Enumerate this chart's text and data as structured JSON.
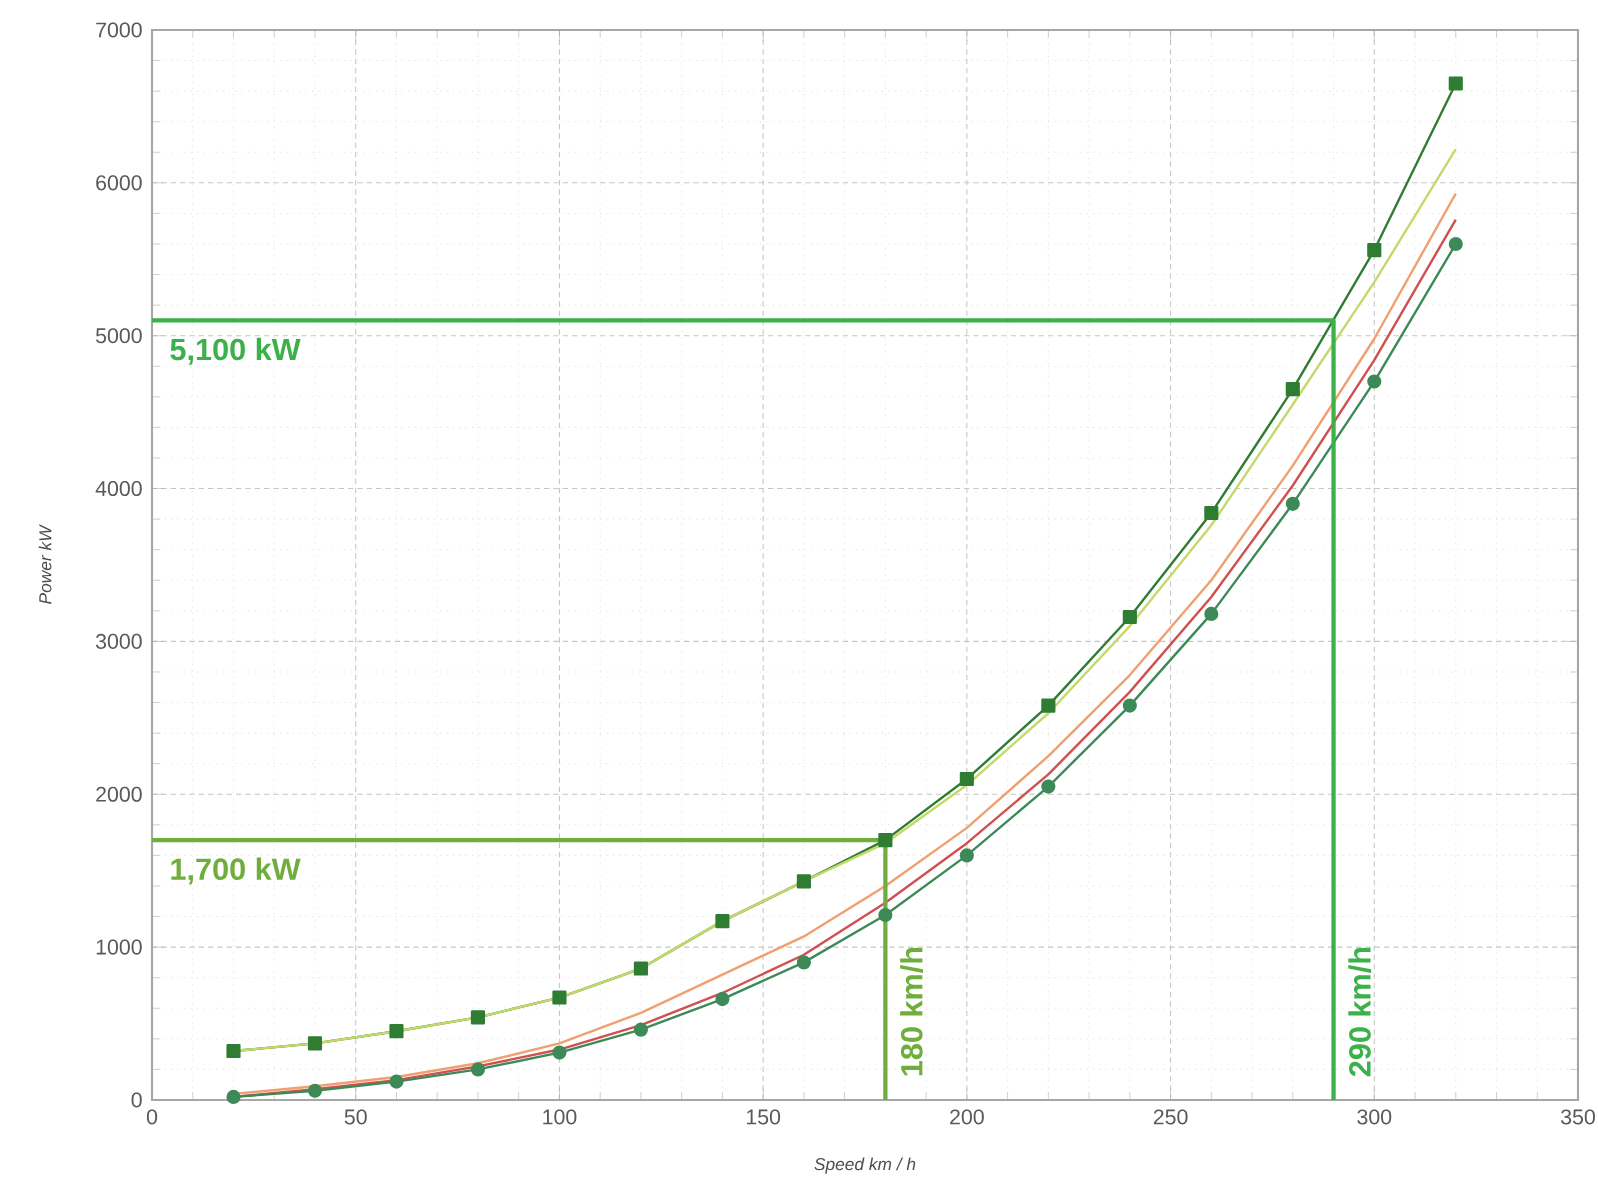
{
  "chart_data": {
    "type": "line",
    "xlabel": "Speed km / h",
    "ylabel": "Power kW",
    "x": [
      20,
      40,
      60,
      80,
      100,
      120,
      140,
      160,
      180,
      200,
      220,
      240,
      260,
      280,
      300,
      320
    ],
    "xlim": [
      0,
      350
    ],
    "xticks": [
      0,
      50,
      100,
      150,
      200,
      250,
      300,
      350
    ],
    "ylim": [
      0,
      7000
    ],
    "yticks": [
      0,
      1000,
      2000,
      3000,
      4000,
      5000,
      6000,
      7000
    ],
    "grid": true,
    "line_style": "solid",
    "series": [
      {
        "color": "#2f7d32",
        "marker": "square",
        "values": [
          320,
          370,
          450,
          540,
          670,
          860,
          1170,
          1430,
          1700,
          2100,
          2580,
          3160,
          3840,
          4650,
          5560,
          6650
        ]
      },
      {
        "color": "#c5d96a",
        "marker": "none",
        "values": [
          320,
          370,
          450,
          540,
          670,
          860,
          1170,
          1430,
          1680,
          2060,
          2530,
          3100,
          3760,
          4550,
          5350,
          6220
        ]
      },
      {
        "color": "#f0a070",
        "marker": "none",
        "values": [
          40,
          90,
          150,
          240,
          370,
          570,
          820,
          1070,
          1400,
          1780,
          2250,
          2780,
          3400,
          4150,
          4980,
          5930
        ]
      },
      {
        "color": "#d05050",
        "marker": "none",
        "values": [
          20,
          70,
          130,
          220,
          330,
          490,
          700,
          950,
          1290,
          1680,
          2130,
          2670,
          3290,
          4020,
          4840,
          5760
        ]
      },
      {
        "color": "#3d8a58",
        "marker": "circle",
        "values": [
          20,
          60,
          120,
          200,
          310,
          460,
          660,
          900,
          1210,
          1600,
          2050,
          2580,
          3180,
          3900,
          4700,
          5600
        ]
      },
      {
        "color": "#3cb04a",
        "marker": "none",
        "x": [
          0,
          290,
          290
        ],
        "values": [
          5100,
          5100,
          0
        ]
      },
      {
        "color": "#6fae3c",
        "marker": "none",
        "x": [
          0,
          180,
          180
        ],
        "values": [
          1700,
          1700,
          0
        ]
      }
    ],
    "annotations": [
      {
        "text": "5,100 kW",
        "x": 0,
        "y": 5100
      },
      {
        "text": "290 km/h",
        "x": 290,
        "y": 0
      },
      {
        "text": "1,700 kW",
        "x": 0,
        "y": 1700
      },
      {
        "text": "180 km/h",
        "x": 180,
        "y": 0
      }
    ]
  }
}
